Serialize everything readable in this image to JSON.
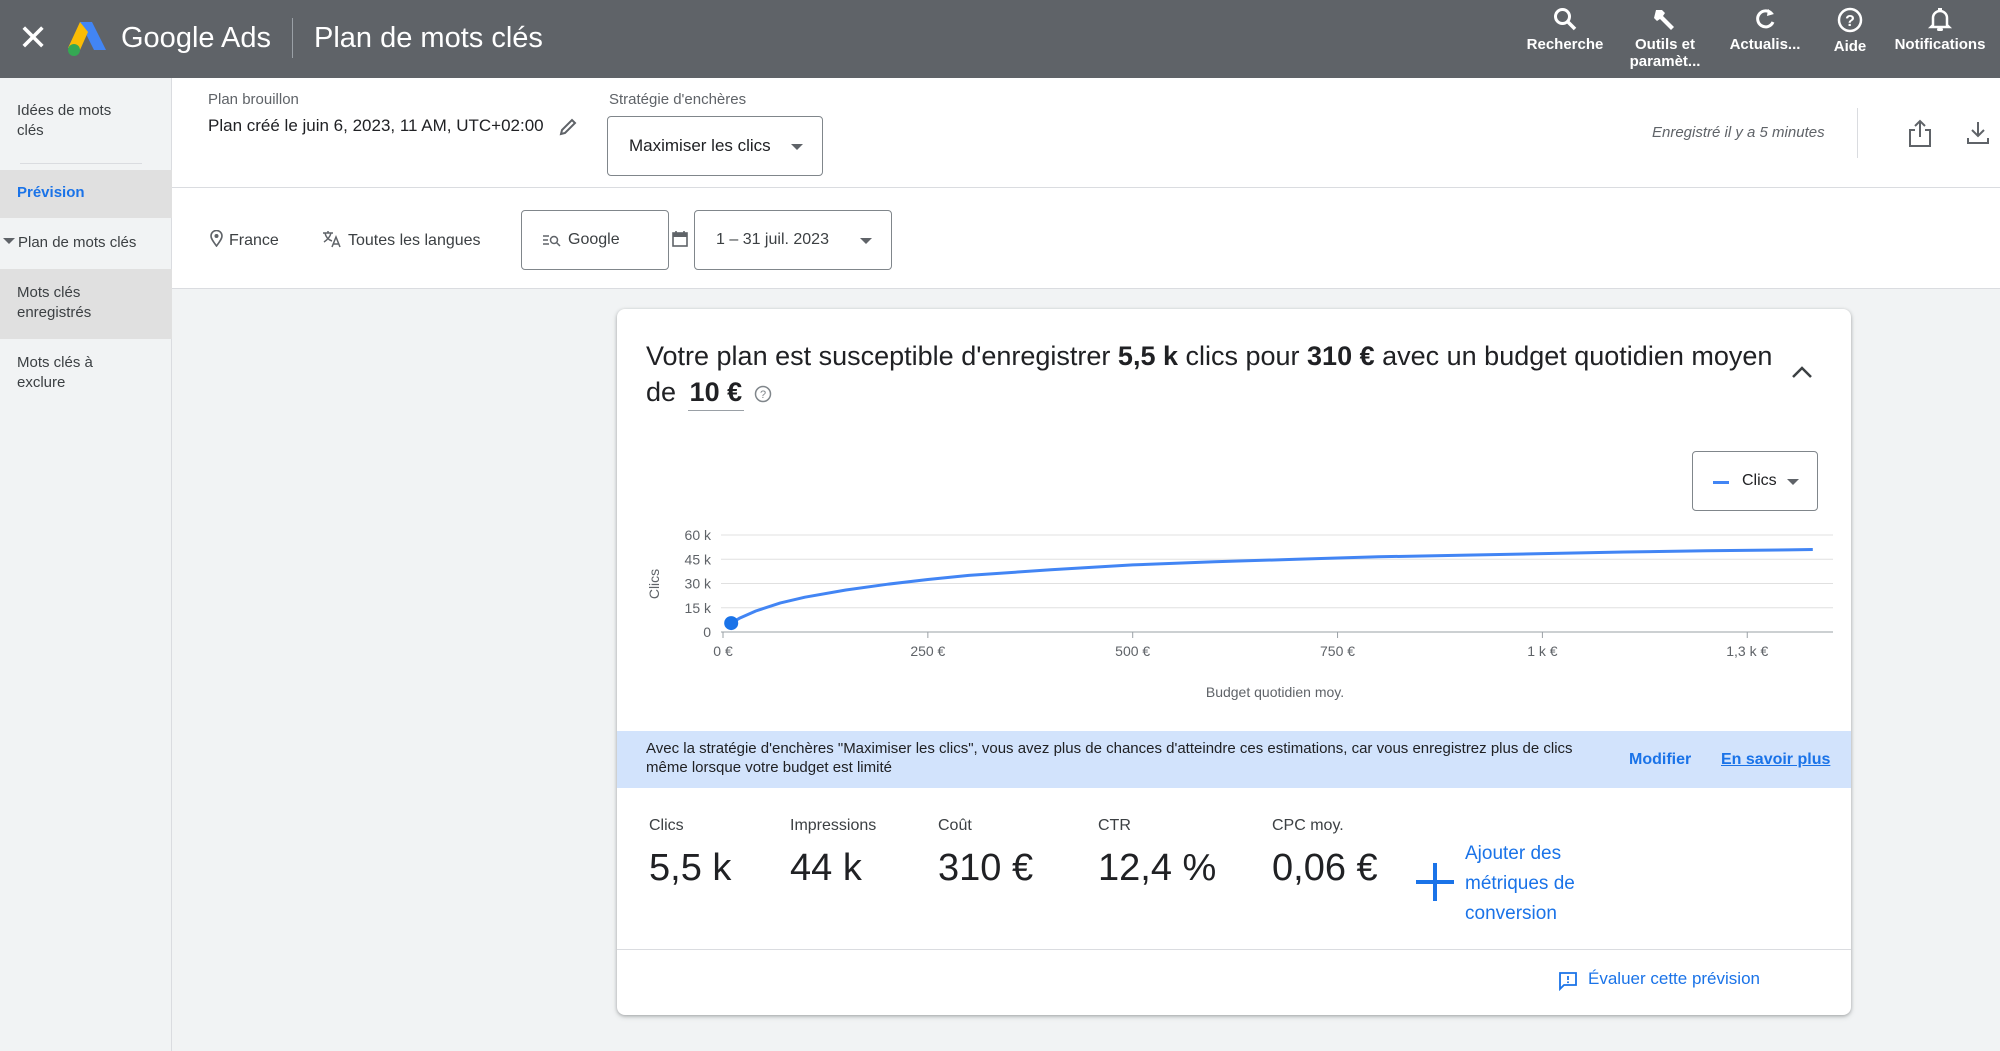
{
  "topbar": {
    "close_icon": "close-icon",
    "brand": "Google Ads",
    "page_title": "Plan de mots clés",
    "buttons": [
      {
        "label": "Recherche",
        "icon": "search-icon"
      },
      {
        "label": "Outils et paramèt...",
        "icon": "wrench-icon"
      },
      {
        "label": "Actualis...",
        "icon": "refresh-icon"
      },
      {
        "label": "Aide",
        "icon": "help-icon"
      },
      {
        "label": "Notifications",
        "icon": "bell-icon"
      }
    ]
  },
  "sidebar": {
    "items": [
      {
        "label": "Idées de mots clés"
      },
      {
        "label": "Prévision"
      },
      {
        "label": "Plan de mots clés"
      },
      {
        "label": "Mots clés enregistrés"
      },
      {
        "label": "Mots clés à exclure"
      }
    ]
  },
  "header": {
    "draft_label": "Plan brouillon",
    "plan_name": "Plan créé le juin 6, 2023, 11 AM, UTC+02:00",
    "strategy_label": "Stratégie d'enchères",
    "strategy_value": "Maximiser les clics",
    "saved_status": "Enregistré il y a 5 minutes"
  },
  "filters": {
    "location": "France",
    "language": "Toutes les langues",
    "network": "Google",
    "date_range": "1 – 31 juil. 2023"
  },
  "forecast": {
    "headline_prefix": "Votre plan est susceptible d'enregistrer ",
    "headline_clicks": "5,5 k",
    "headline_mid1": " clics pour ",
    "headline_cost": "310 €",
    "headline_mid2": " avec un budget quotidien moyen de ",
    "headline_budget": "10 €",
    "metric_selector": "Clics",
    "info_message": "Avec la stratégie d'enchères \"Maximiser les clics\", vous avez plus de chances d'atteindre ces estimations, car vous enregistrez plus de clics même lorsque votre budget est limité",
    "modify_link": "Modifier",
    "learn_more_link": "En savoir plus",
    "metrics": [
      {
        "label": "Clics",
        "value": "5,5 k"
      },
      {
        "label": "Impressions",
        "value": "44 k"
      },
      {
        "label": "Coût",
        "value": "310 €"
      },
      {
        "label": "CTR",
        "value": "12,4 %"
      },
      {
        "label": "CPC moy.",
        "value": "0,06 €"
      }
    ],
    "add_conversion": "Ajouter des métriques de conversion",
    "rate_forecast": "Évaluer cette prévision"
  },
  "chart_data": {
    "type": "line",
    "xlabel": "Budget quotidien moy.",
    "ylabel": "Clics",
    "x_ticks": [
      "0 €",
      "250 €",
      "500 €",
      "750 €",
      "1 k €",
      "1,3 k €"
    ],
    "x_tick_values": [
      0,
      250,
      500,
      750,
      1000,
      1250
    ],
    "y_ticks": [
      "0",
      "15 k",
      "30 k",
      "45 k",
      "60 k"
    ],
    "y_tick_values": [
      0,
      15000,
      30000,
      45000,
      60000
    ],
    "xlim": [
      0,
      1340
    ],
    "ylim": [
      0,
      60000
    ],
    "series": [
      {
        "name": "Clics",
        "color": "#4285f4",
        "x": [
          10,
          20,
          40,
          70,
          100,
          150,
          200,
          250,
          300,
          400,
          500,
          600,
          700,
          800,
          900,
          1000,
          1100,
          1200,
          1300,
          1330
        ],
        "y": [
          5500,
          8500,
          13000,
          18000,
          21500,
          26000,
          29500,
          32500,
          35000,
          38500,
          41500,
          43500,
          45000,
          46500,
          47500,
          48500,
          49500,
          50200,
          50800,
          51000
        ]
      }
    ],
    "highlight_point": {
      "x": 10,
      "y": 5500
    },
    "grid": true
  }
}
